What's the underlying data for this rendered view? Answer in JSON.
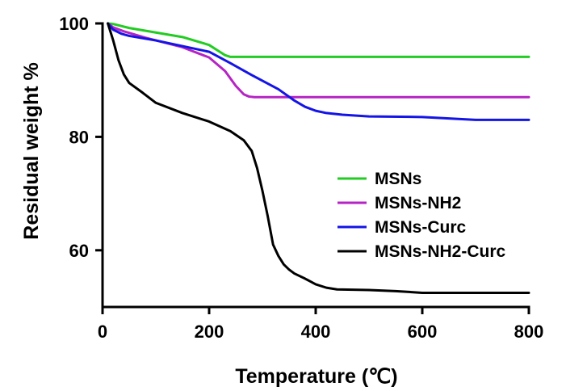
{
  "chart_data": {
    "type": "line",
    "title": "",
    "xlabel": "Temperature (℃)",
    "ylabel": "Residual weight %",
    "xlim": [
      0,
      800
    ],
    "ylim": [
      50,
      100
    ],
    "xticks": [
      0,
      200,
      400,
      600,
      800
    ],
    "yticks": [
      60,
      80,
      100
    ],
    "xtick_labels": [
      "0",
      "200",
      "400",
      "600",
      "800"
    ],
    "ytick_labels": [
      "60",
      "80",
      "100"
    ],
    "grid": false,
    "legend_position": "center-right",
    "series": [
      {
        "name": "MSNs",
        "color": "#22cc22",
        "x": [
          10,
          20,
          50,
          100,
          150,
          200,
          220,
          230,
          240,
          300,
          400,
          500,
          600,
          700,
          800
        ],
        "y": [
          100,
          99.9,
          99.2,
          98.4,
          97.6,
          96.2,
          95.0,
          94.4,
          94.1,
          94.1,
          94.1,
          94.1,
          94.1,
          94.1,
          94.1
        ]
      },
      {
        "name": "MSNs-NH2",
        "color": "#b524c4",
        "x": [
          10,
          20,
          40,
          80,
          150,
          200,
          230,
          250,
          265,
          275,
          285,
          300,
          400,
          500,
          600,
          700,
          800
        ],
        "y": [
          100,
          99.3,
          98.6,
          97.5,
          95.8,
          94.0,
          91.6,
          89.0,
          87.5,
          87.1,
          87.0,
          87.0,
          87.0,
          87.0,
          87.0,
          87.0,
          87.0
        ]
      },
      {
        "name": "MSNs-Curc",
        "color": "#1414e6",
        "x": [
          10,
          20,
          35,
          50,
          100,
          150,
          200,
          240,
          280,
          330,
          360,
          380,
          400,
          420,
          450,
          500,
          600,
          700,
          800
        ],
        "y": [
          100,
          98.9,
          98.2,
          97.8,
          97.0,
          96.0,
          95.0,
          93.0,
          90.9,
          88.4,
          86.4,
          85.3,
          84.6,
          84.2,
          83.9,
          83.6,
          83.5,
          83.0,
          83.0
        ]
      },
      {
        "name": "MSNs-NH2-Curc",
        "color": "#000000",
        "x": [
          10,
          20,
          30,
          40,
          50,
          75,
          100,
          150,
          200,
          240,
          265,
          280,
          290,
          300,
          310,
          320,
          330,
          340,
          350,
          360,
          380,
          400,
          420,
          440,
          500,
          550,
          600,
          700,
          800
        ],
        "y": [
          100,
          97.0,
          93.5,
          91.0,
          89.5,
          87.8,
          86.0,
          84.2,
          82.7,
          81.0,
          79.4,
          77.5,
          74.5,
          70.5,
          66.0,
          61.0,
          59.0,
          57.5,
          56.6,
          55.9,
          55.0,
          54.0,
          53.4,
          53.1,
          53.0,
          52.8,
          52.5,
          52.5,
          52.5
        ]
      }
    ]
  }
}
